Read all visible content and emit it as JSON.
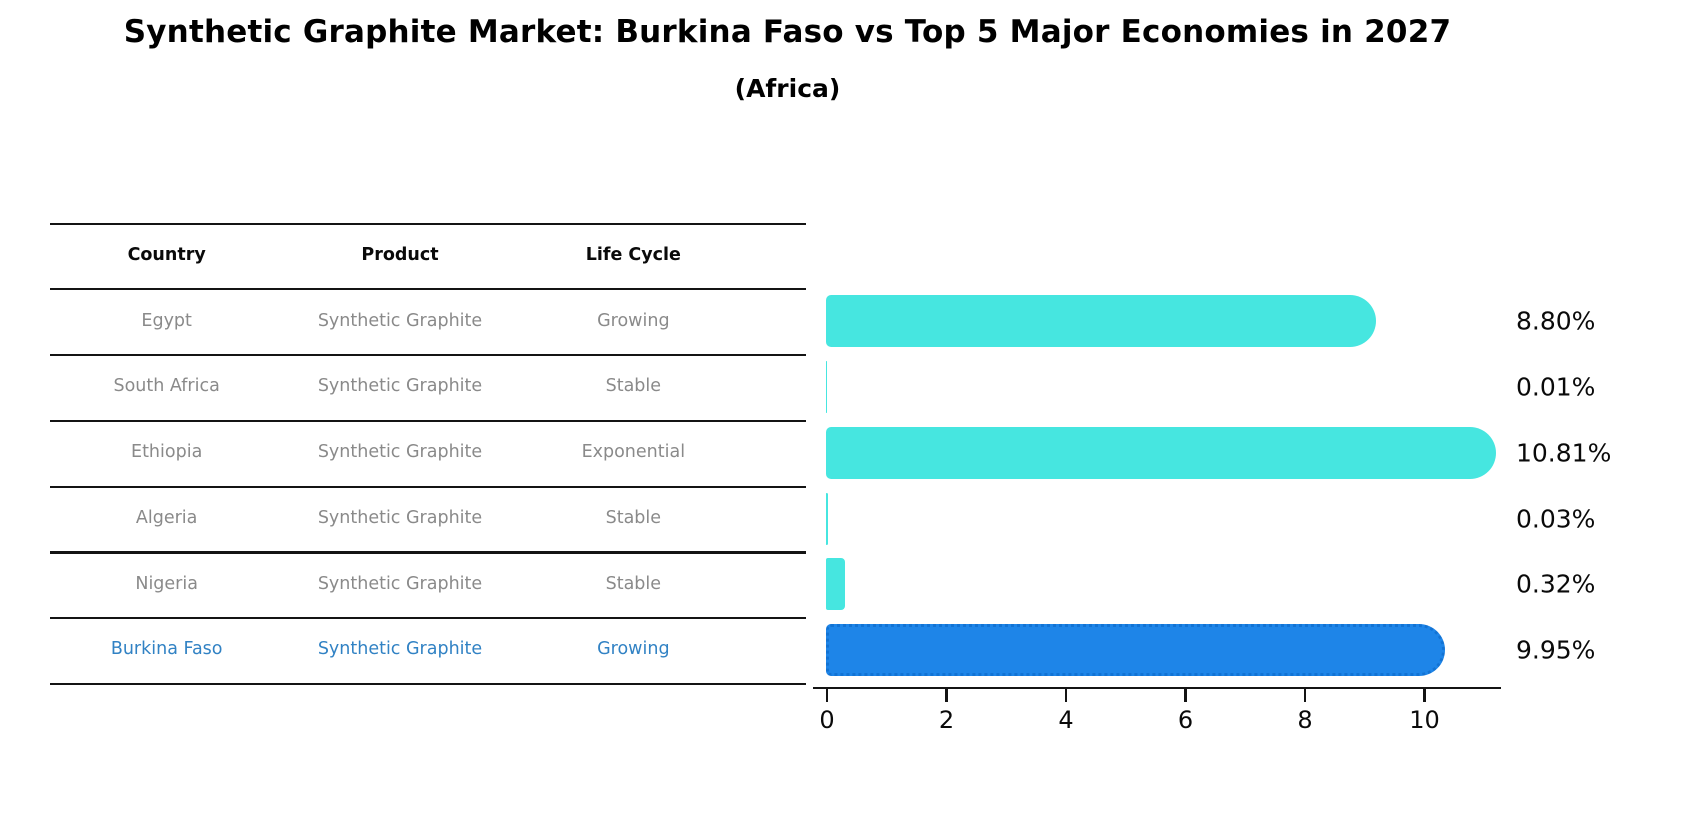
{
  "title": "Synthetic Graphite Market: Burkina Faso vs Top 5 Major Economies in 2027",
  "subtitle": "(Africa)",
  "table": {
    "headers": [
      "Country",
      "Product",
      "Life Cycle"
    ],
    "rows": [
      {
        "country": "Egypt",
        "product": "Synthetic Graphite",
        "life_cycle": "Growing",
        "highlight": false
      },
      {
        "country": "South Africa",
        "product": "Synthetic Graphite",
        "life_cycle": "Stable",
        "highlight": false
      },
      {
        "country": "Ethiopia",
        "product": "Synthetic Graphite",
        "life_cycle": "Exponential",
        "highlight": false
      },
      {
        "country": "Algeria",
        "product": "Synthetic Graphite",
        "life_cycle": "Stable",
        "highlight": false
      },
      {
        "country": "Nigeria",
        "product": "Synthetic Graphite",
        "life_cycle": "Stable",
        "highlight": false
      },
      {
        "country": "Burkina Faso",
        "product": "Synthetic Graphite",
        "life_cycle": "Growing",
        "highlight": true
      }
    ]
  },
  "chart_data": {
    "type": "bar",
    "orientation": "horizontal",
    "title": "Synthetic Graphite Market: Burkina Faso vs Top 5 Major Economies in 2027 (Africa)",
    "categories": [
      "Egypt",
      "South Africa",
      "Ethiopia",
      "Algeria",
      "Nigeria",
      "Burkina Faso"
    ],
    "values": [
      8.8,
      0.01,
      10.81,
      0.03,
      0.32,
      9.95
    ],
    "value_labels": [
      "8.80%",
      "0.01%",
      "10.81%",
      "0.03%",
      "0.32%",
      "9.95%"
    ],
    "unit": "%",
    "highlight_category": "Burkina Faso",
    "xlabel": "",
    "ylabel": "",
    "xticks": [
      0,
      2,
      4,
      6,
      8,
      10
    ],
    "xlim": [
      0,
      11.3
    ],
    "grid": false,
    "legend": false,
    "colors": {
      "bar": "#46E6E0",
      "highlight_bar": "#1E85E8",
      "highlight_bar_border": "#1273D4",
      "table_text": "#8A8A8A",
      "highlight_text": "#3182C4",
      "text": "#0A0A0A",
      "axis": "#141414"
    }
  }
}
